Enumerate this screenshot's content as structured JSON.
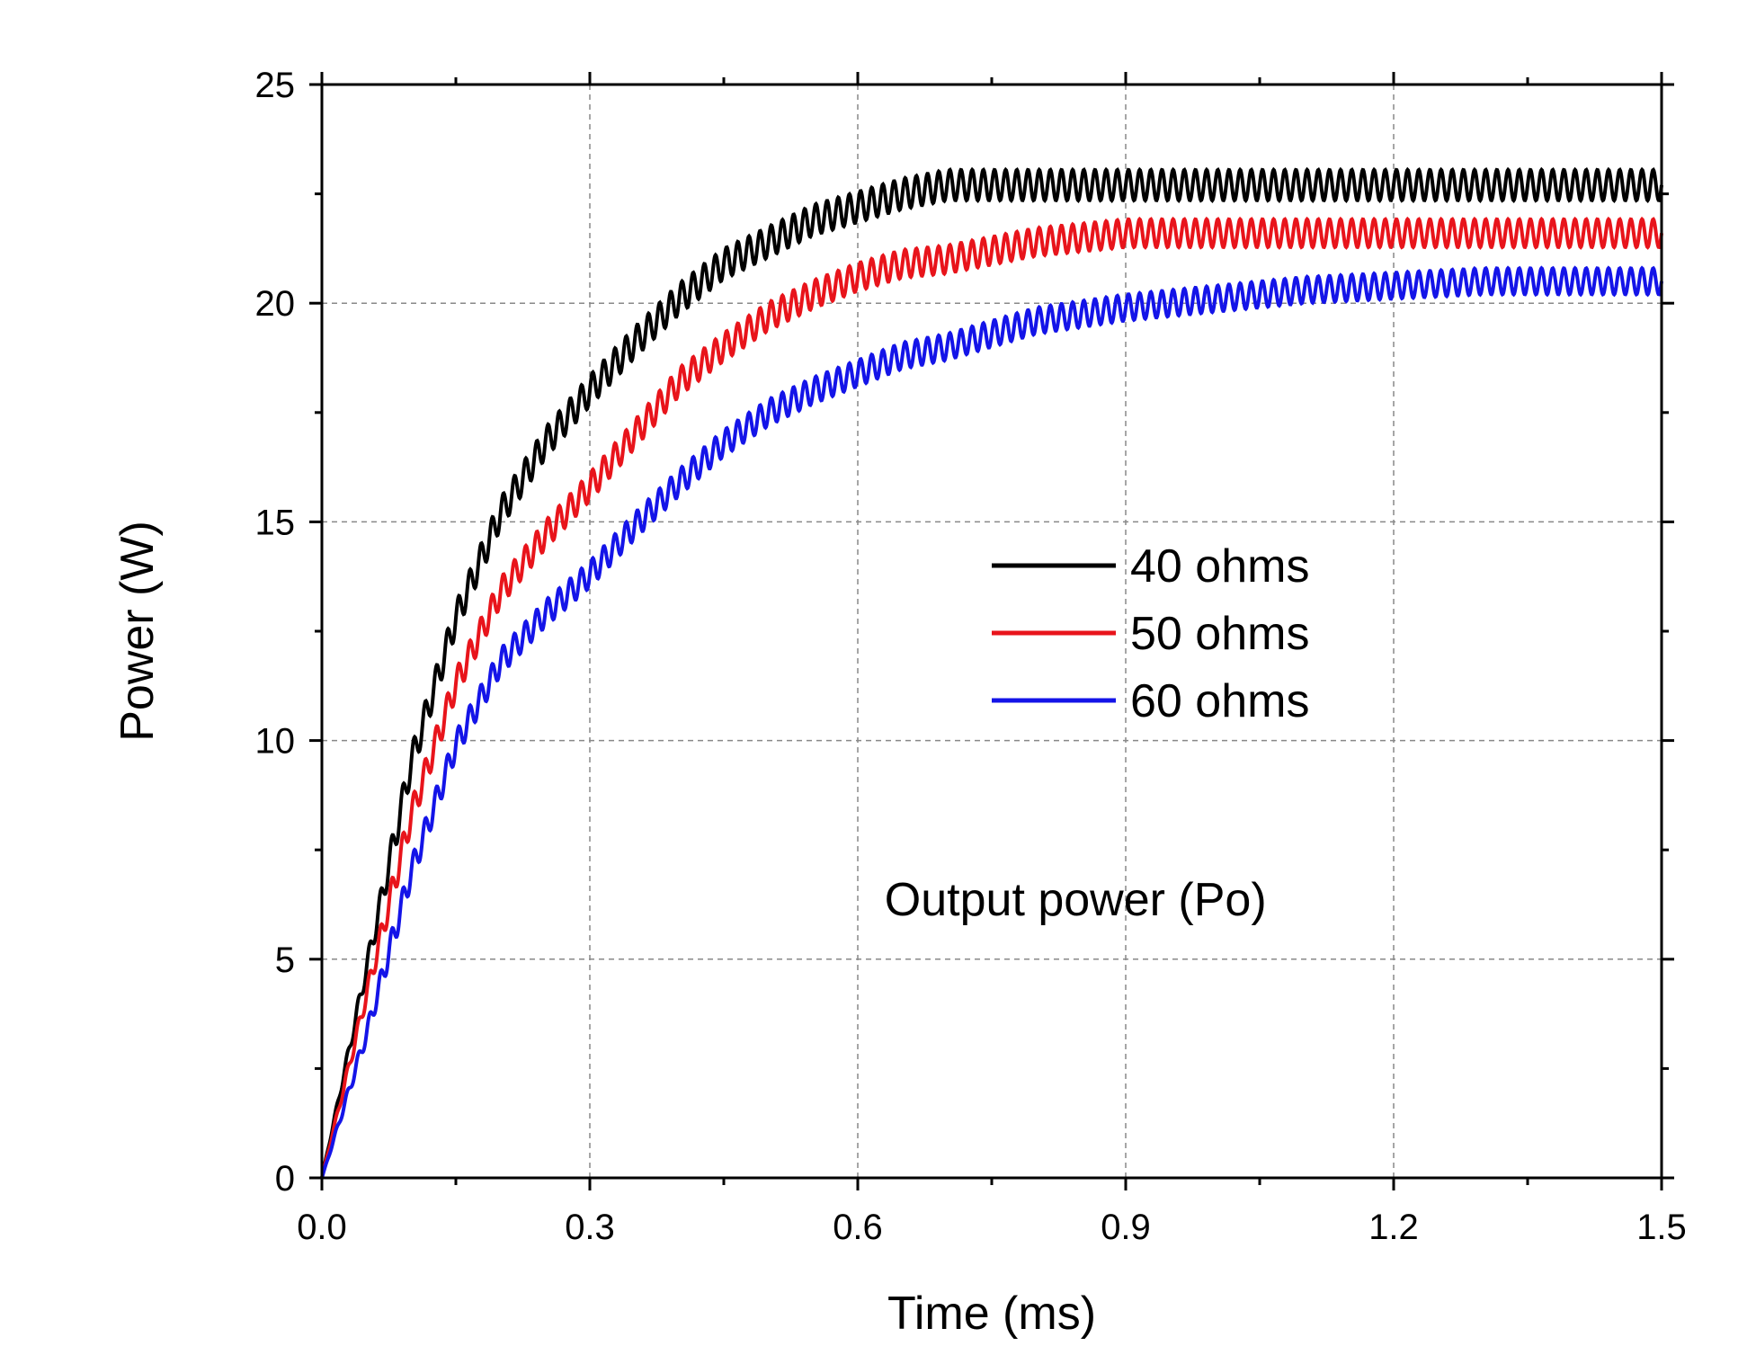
{
  "chart_data": {
    "type": "line",
    "title": "",
    "xlabel": "Time (ms)",
    "ylabel": "Power (W)",
    "xlim": [
      0,
      1.5
    ],
    "ylim": [
      0,
      25
    ],
    "xticks": [
      0.0,
      0.3,
      0.6,
      0.9,
      1.2,
      1.5
    ],
    "xtick_labels": [
      "0.0",
      "0.3",
      "0.6",
      "0.9",
      "1.2",
      "1.5"
    ],
    "yticks": [
      0,
      5,
      10,
      15,
      20,
      25
    ],
    "ytick_labels": [
      "0",
      "5",
      "10",
      "15",
      "20",
      "25"
    ],
    "grid": true,
    "legend_position": "center-right",
    "annotation": "Output power (Po)",
    "x": [
      0.0,
      0.05,
      0.1,
      0.15,
      0.2,
      0.25,
      0.3,
      0.35,
      0.4,
      0.45,
      0.5,
      0.55,
      0.6,
      0.65,
      0.7,
      0.75,
      0.8,
      0.9,
      1.0,
      1.1,
      1.2,
      1.3,
      1.4,
      1.5
    ],
    "series": [
      {
        "name": "40 ohms",
        "color": "#000000",
        "values": [
          0,
          4.8,
          9.5,
          12.8,
          15.2,
          16.8,
          18.0,
          19.1,
          20.1,
          20.9,
          21.4,
          21.9,
          22.2,
          22.5,
          22.7,
          22.7,
          22.7,
          22.7,
          22.7,
          22.7,
          22.7,
          22.7,
          22.7,
          22.7
        ],
        "ripple": 0.35
      },
      {
        "name": "50 ohms",
        "color": "#e8141b",
        "values": [
          0,
          4.2,
          8.3,
          11.3,
          13.4,
          14.7,
          15.8,
          17.0,
          18.2,
          19.0,
          19.7,
          20.2,
          20.6,
          20.9,
          21.0,
          21.2,
          21.4,
          21.6,
          21.6,
          21.6,
          21.6,
          21.6,
          21.6,
          21.6
        ],
        "ripple": 0.32
      },
      {
        "name": "60 ohms",
        "color": "#1414e8",
        "values": [
          0,
          3.3,
          7.0,
          9.9,
          11.8,
          12.9,
          13.8,
          14.9,
          15.9,
          16.8,
          17.5,
          18.0,
          18.4,
          18.8,
          19.0,
          19.3,
          19.6,
          19.9,
          20.1,
          20.3,
          20.4,
          20.5,
          20.5,
          20.5
        ],
        "ripple": 0.3
      }
    ]
  }
}
